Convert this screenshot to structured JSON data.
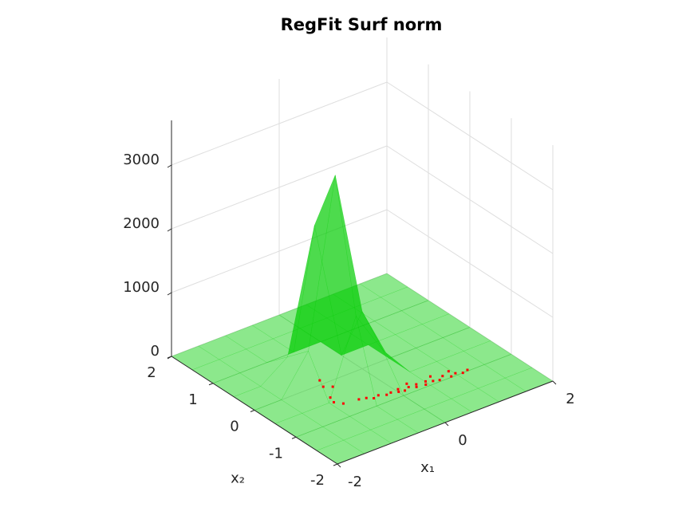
{
  "chart_data": {
    "type": "surface3d",
    "title": "RegFit Surf norm",
    "xlabel": "x₁",
    "ylabel": "x₂",
    "xlim": [
      -2,
      2
    ],
    "xticks": [
      -2,
      0,
      2
    ],
    "ylim": [
      -2,
      2
    ],
    "yticks": [
      -2,
      -1,
      0,
      1,
      2
    ],
    "zlim": [
      0,
      3700
    ],
    "zticks": [
      0,
      1000,
      2000,
      3000
    ],
    "grid": true,
    "surface": {
      "color": "#00cc00",
      "x": [
        -2,
        -1.5,
        -1,
        -0.5,
        0,
        0.5,
        1,
        1.5,
        2
      ],
      "y": [
        -2,
        -1.5,
        -1,
        -0.5,
        0,
        0.5,
        1,
        1.5,
        2
      ],
      "z": [
        [
          0,
          0,
          0,
          0,
          0,
          0,
          0,
          0,
          0
        ],
        [
          0,
          0,
          0,
          0,
          0,
          0,
          0,
          0,
          0
        ],
        [
          0,
          0,
          0,
          0,
          0,
          0,
          0,
          0,
          0
        ],
        [
          0,
          0,
          0,
          1200,
          500,
          0,
          0,
          0,
          0
        ],
        [
          0,
          0,
          600,
          3200,
          900,
          0,
          0,
          0,
          0
        ],
        [
          0,
          0,
          300,
          2200,
          0,
          0,
          0,
          0,
          0
        ],
        [
          0,
          0,
          0,
          0,
          0,
          0,
          0,
          0,
          0
        ],
        [
          0,
          0,
          0,
          0,
          0,
          0,
          0,
          0,
          0
        ],
        [
          0,
          0,
          0,
          0,
          0,
          0,
          0,
          0,
          0
        ]
      ]
    },
    "scatter": {
      "color": "#ff0000",
      "x": [
        -0.75,
        -0.8,
        -0.7,
        -0.9,
        -0.95,
        -0.85,
        -0.6,
        -0.5,
        -0.4,
        -0.3,
        -0.2,
        -0.1,
        0,
        0.05,
        0.1,
        0.2,
        0.3,
        0.35,
        0.45,
        0.5,
        0.6,
        0.7,
        0.8,
        0.9,
        1.0,
        1.1,
        1.2,
        0.95,
        0.65,
        0.25
      ],
      "y": [
        0.05,
        -0.1,
        -0.2,
        -0.4,
        -0.55,
        -0.65,
        -0.7,
        -0.75,
        -0.8,
        -0.78,
        -0.85,
        -0.82,
        -0.88,
        -0.8,
        -0.9,
        -0.86,
        -0.92,
        -0.85,
        -0.95,
        -0.88,
        -0.93,
        -0.96,
        -0.9,
        -0.98,
        -0.95,
        -1.0,
        -0.98,
        -0.85,
        -0.8,
        -0.75
      ],
      "z": [
        40,
        20,
        30,
        10,
        15,
        5,
        10,
        20,
        5,
        10,
        15,
        5,
        10,
        0,
        5,
        10,
        5,
        0,
        5,
        10,
        5,
        0,
        5,
        0,
        5,
        0,
        5,
        10,
        5,
        0
      ]
    }
  }
}
